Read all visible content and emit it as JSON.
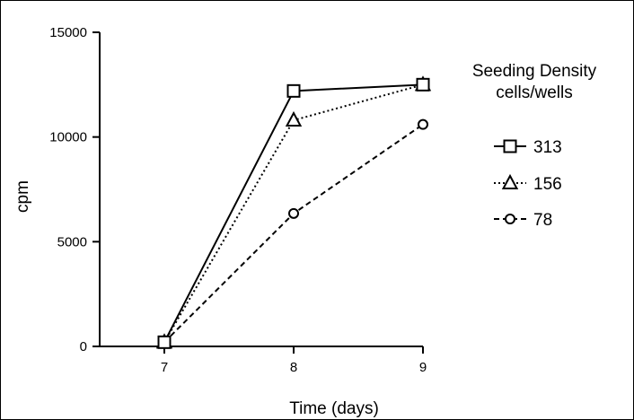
{
  "chart_data": {
    "type": "line",
    "title": "",
    "xlabel": "Time (days)",
    "ylabel": "cpm",
    "x": [
      7,
      8,
      9
    ],
    "x_ticks": [
      "7",
      "8",
      "9"
    ],
    "y_ticks": [
      "0",
      "5000",
      "10000",
      "15000"
    ],
    "xlim": [
      6.5,
      9
    ],
    "ylim": [
      0,
      15000
    ],
    "grid": false,
    "legend_title_lines": [
      "Seeding Density",
      "cells/wells"
    ],
    "legend_position": "right",
    "series": [
      {
        "name": "313",
        "values": [
          200,
          12200,
          12500
        ],
        "marker": "square",
        "line": "solid"
      },
      {
        "name": "156",
        "values": [
          200,
          10800,
          12500
        ],
        "marker": "triangle",
        "line": "dotted"
      },
      {
        "name": "78",
        "values": [
          200,
          6350,
          10600
        ],
        "marker": "circle",
        "line": "dashed"
      }
    ]
  }
}
